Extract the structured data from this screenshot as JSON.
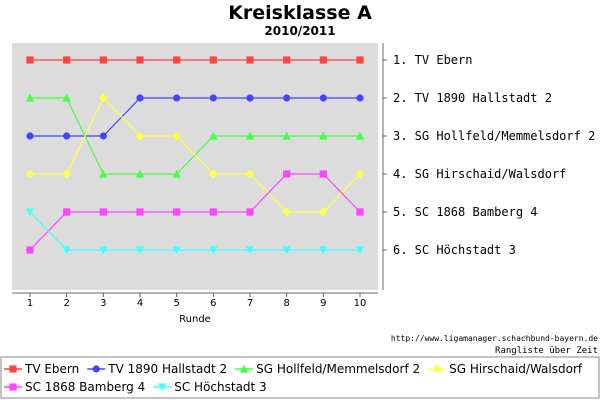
{
  "chart_data": {
    "type": "line",
    "title": "Kreisklasse A",
    "subtitle": "2010/2011",
    "xlabel": "Runde",
    "ylabel": "",
    "x": [
      1,
      2,
      3,
      4,
      5,
      6,
      7,
      8,
      9,
      10
    ],
    "ylim": [
      1,
      6
    ],
    "y_inverted": true,
    "grid": false,
    "background_color": "#dcdcdc",
    "legend_position": "bottom",
    "right_labels": [
      "1. TV Ebern",
      "2. TV 1890 Hallstadt 2",
      "3. SG Hollfeld/Memmelsdorf 2",
      "4. SG Hirschaid/Walsdorf",
      "5. SC 1868 Bamberg 4",
      "6. SC Höchstadt 3"
    ],
    "series": [
      {
        "name": "TV Ebern",
        "color": "#ff4444",
        "marker": "square",
        "values": [
          1,
          1,
          1,
          1,
          1,
          1,
          1,
          1,
          1,
          1
        ]
      },
      {
        "name": "TV 1890 Hallstadt 2",
        "color": "#4444ff",
        "marker": "circle",
        "values": [
          3,
          3,
          3,
          2,
          2,
          2,
          2,
          2,
          2,
          2
        ]
      },
      {
        "name": "SG Hollfeld/Memmelsdorf 2",
        "color": "#44ff44",
        "marker": "triangle-up",
        "values": [
          2,
          2,
          4,
          4,
          4,
          3,
          3,
          3,
          3,
          3
        ]
      },
      {
        "name": "SG Hirschaid/Walsdorf",
        "color": "#ffff44",
        "marker": "diamond",
        "values": [
          4,
          4,
          2,
          3,
          3,
          4,
          4,
          5,
          5,
          4
        ]
      },
      {
        "name": "SC 1868 Bamberg 4",
        "color": "#ff44ff",
        "marker": "square",
        "values": [
          6,
          5,
          5,
          5,
          5,
          5,
          5,
          4,
          4,
          5
        ]
      },
      {
        "name": "SC Höchstadt 3",
        "color": "#44ffff",
        "marker": "triangle-down",
        "values": [
          5,
          6,
          6,
          6,
          6,
          6,
          6,
          6,
          6,
          6
        ]
      }
    ],
    "source_text": "http://www.ligamanager.schachbund-bayern.de",
    "caption": "Rangliste über Zeit"
  }
}
